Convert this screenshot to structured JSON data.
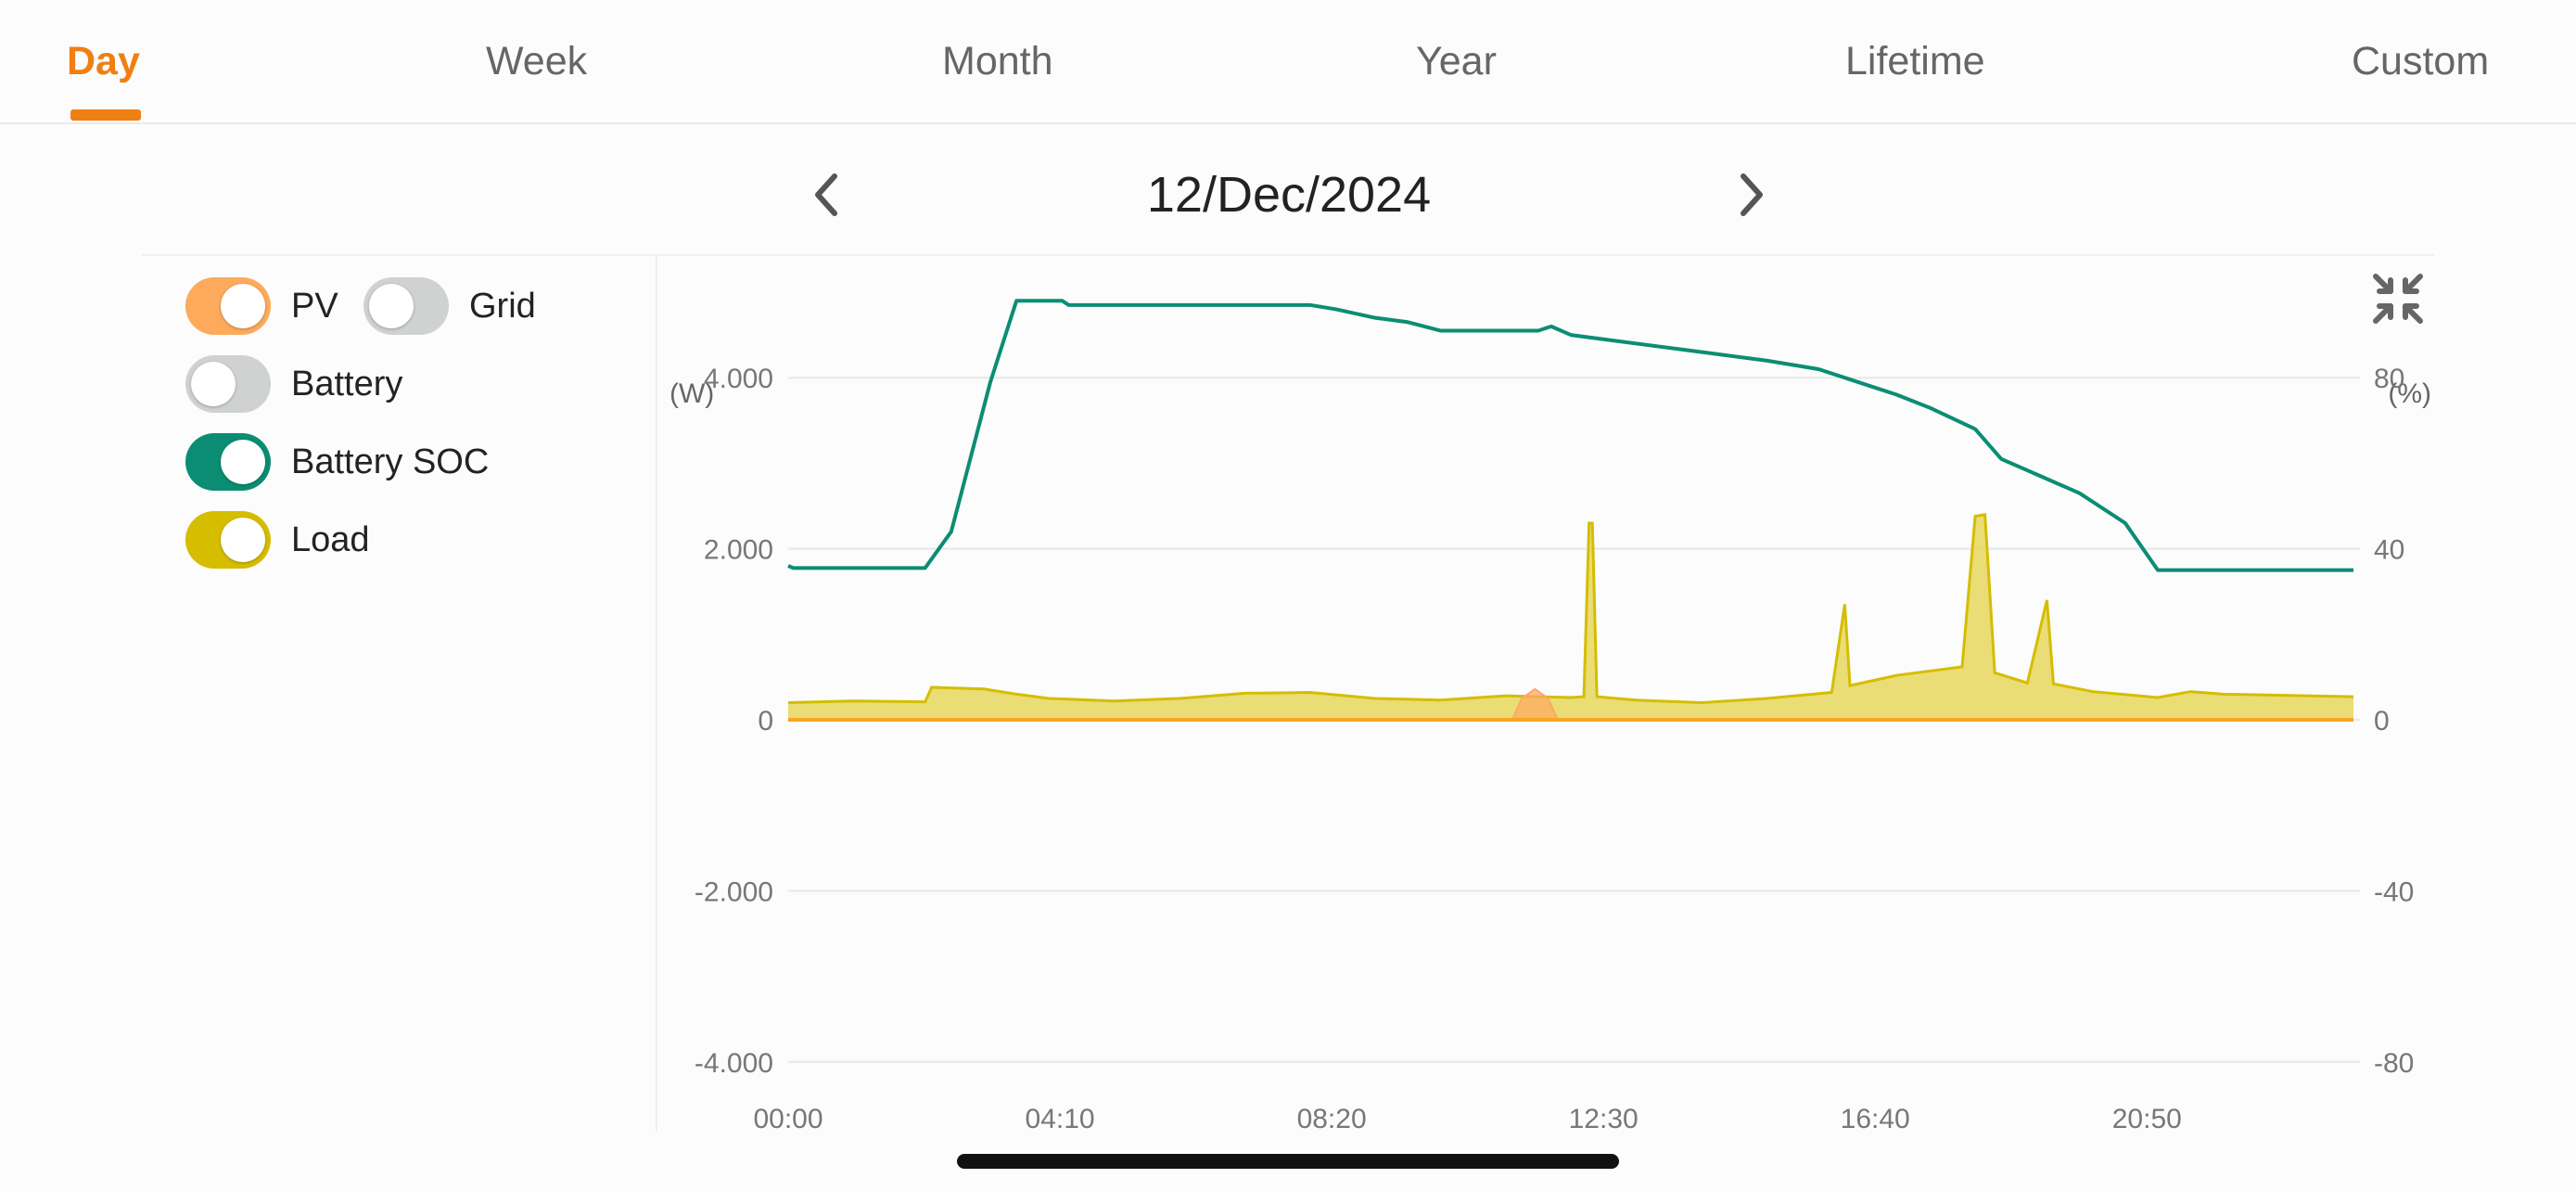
{
  "tabs": [
    {
      "label": "Day",
      "active": true
    },
    {
      "label": "Week",
      "active": false
    },
    {
      "label": "Month",
      "active": false
    },
    {
      "label": "Year",
      "active": false
    },
    {
      "label": "Lifetime",
      "active": false
    },
    {
      "label": "Custom",
      "active": false
    }
  ],
  "date_nav": {
    "date": "12/Dec/2024",
    "prev_icon": "chevron-left-icon",
    "next_icon": "chevron-right-icon"
  },
  "toggles": [
    {
      "label": "PV",
      "on": true,
      "color": "#fdaa5c"
    },
    {
      "label": "Grid",
      "on": false,
      "color": "#cfd2d0"
    },
    {
      "label": "Battery",
      "on": false,
      "color": "#cfd2d0"
    },
    {
      "label": "Battery SOC",
      "on": true,
      "color": "#0b8d74"
    },
    {
      "label": "Load",
      "on": true,
      "color": "#d5bd00"
    }
  ],
  "collapse_icon": "collapse-icon",
  "chart_data": {
    "type": "area",
    "left_unit": "(W)",
    "right_unit": "(%)",
    "left_ticks": [
      "4.000",
      "2.000",
      "0",
      "-2.000",
      "-4.000"
    ],
    "left_tick_values": [
      4000,
      2000,
      0,
      -2000,
      -4000
    ],
    "right_ticks": [
      "80",
      "40",
      "0",
      "-40",
      "-80"
    ],
    "right_tick_values": [
      80,
      40,
      0,
      -40,
      -80
    ],
    "x_ticks": [
      "00:00",
      "04:10",
      "08:20",
      "12:30",
      "16:40",
      "20:50"
    ],
    "x_tick_hours": [
      0,
      4.1667,
      8.3333,
      12.5,
      16.6667,
      20.8333
    ],
    "xlim_hours": [
      0,
      24
    ],
    "ylim_left": [
      -5000,
      5000
    ],
    "ylim_right": [
      -100,
      100
    ],
    "grid": true,
    "colors": {
      "soc": "#0b8d74",
      "load_line": "#d5bd00",
      "load_fill": "#e6d75d",
      "pv": "#fda863",
      "zero_line": "#f5a623"
    },
    "series": [
      {
        "name": "Battery SOC",
        "axis": "right",
        "points": [
          [
            0,
            36
          ],
          [
            0.08,
            35.5
          ],
          [
            2.1,
            35.5
          ],
          [
            2.5,
            44
          ],
          [
            3.1,
            79
          ],
          [
            3.5,
            98
          ],
          [
            4.2,
            98
          ],
          [
            4.3,
            97
          ],
          [
            8.0,
            97
          ],
          [
            8.4,
            96
          ],
          [
            9.0,
            94
          ],
          [
            9.5,
            93
          ],
          [
            10.0,
            91
          ],
          [
            11.5,
            91
          ],
          [
            11.7,
            92
          ],
          [
            12.0,
            90
          ],
          [
            12.5,
            89
          ],
          [
            14.0,
            86
          ],
          [
            15.0,
            84
          ],
          [
            15.8,
            82
          ],
          [
            16.4,
            79
          ],
          [
            17.0,
            76
          ],
          [
            17.5,
            73
          ],
          [
            18.2,
            68
          ],
          [
            18.6,
            61
          ],
          [
            19.2,
            57
          ],
          [
            19.8,
            53
          ],
          [
            20.5,
            46
          ],
          [
            21.0,
            35
          ],
          [
            24.0,
            35
          ]
        ]
      },
      {
        "name": "Load",
        "axis": "left",
        "points": [
          [
            0,
            200
          ],
          [
            1.0,
            220
          ],
          [
            2.1,
            210
          ],
          [
            2.2,
            380
          ],
          [
            3.0,
            360
          ],
          [
            3.5,
            300
          ],
          [
            4.0,
            250
          ],
          [
            5.0,
            220
          ],
          [
            6.0,
            250
          ],
          [
            7.0,
            310
          ],
          [
            8.0,
            320
          ],
          [
            9.0,
            250
          ],
          [
            10.0,
            230
          ],
          [
            11.0,
            280
          ],
          [
            12.0,
            260
          ],
          [
            12.2,
            270
          ],
          [
            12.28,
            2300
          ],
          [
            12.33,
            2300
          ],
          [
            12.4,
            270
          ],
          [
            13.0,
            230
          ],
          [
            14.0,
            200
          ],
          [
            15.0,
            250
          ],
          [
            16.0,
            320
          ],
          [
            16.2,
            1350
          ],
          [
            16.28,
            400
          ],
          [
            17.0,
            520
          ],
          [
            18.0,
            620
          ],
          [
            18.2,
            2380
          ],
          [
            18.35,
            2400
          ],
          [
            18.5,
            550
          ],
          [
            19.0,
            430
          ],
          [
            19.3,
            1400
          ],
          [
            19.4,
            420
          ],
          [
            20.0,
            330
          ],
          [
            21.0,
            260
          ],
          [
            21.5,
            330
          ],
          [
            22.0,
            300
          ],
          [
            24.0,
            270
          ]
        ]
      },
      {
        "name": "PV",
        "axis": "left",
        "points": [
          [
            11.1,
            0
          ],
          [
            11.25,
            250
          ],
          [
            11.45,
            360
          ],
          [
            11.65,
            250
          ],
          [
            11.8,
            0
          ]
        ]
      }
    ]
  },
  "home_indicator": true
}
